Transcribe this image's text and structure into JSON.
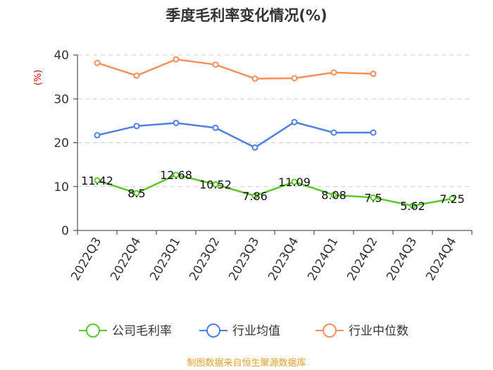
{
  "page": {
    "source_note": "制图数据来自恒生聚源数据库"
  },
  "chart_data": {
    "type": "line",
    "title": "季度毛利率变化情况(%)",
    "xlabel": "",
    "ylabel": "(%)",
    "ylim": [
      0,
      40
    ],
    "yticks": [
      0,
      10,
      20,
      30,
      40
    ],
    "grid": true,
    "legend_position": "bottom",
    "categories": [
      "2022Q3",
      "2022Q4",
      "2023Q1",
      "2023Q2",
      "2023Q3",
      "2023Q4",
      "2024Q1",
      "2024Q2",
      "2024Q3",
      "2024Q4"
    ],
    "series": [
      {
        "name": "公司毛利率",
        "color": "#5cc72a",
        "show_labels": true,
        "labels": [
          "11.42",
          "8.5",
          "12.68",
          "10.52",
          "7.86",
          "11.09",
          "8.08",
          "7.5",
          "5.62",
          "7.25"
        ],
        "values": [
          11.42,
          8.5,
          12.68,
          10.52,
          7.86,
          11.09,
          8.08,
          7.5,
          5.62,
          7.25
        ]
      },
      {
        "name": "行业均值",
        "color": "#4f7fe0",
        "show_labels": false,
        "values": [
          21.7,
          23.8,
          24.5,
          23.4,
          18.9,
          24.7,
          22.3,
          22.3,
          null,
          null
        ]
      },
      {
        "name": "行业中位数",
        "color": "#f5905a",
        "show_labels": false,
        "values": [
          38.2,
          35.3,
          39.0,
          37.8,
          34.6,
          34.7,
          36.0,
          35.7,
          null,
          null
        ]
      }
    ]
  }
}
